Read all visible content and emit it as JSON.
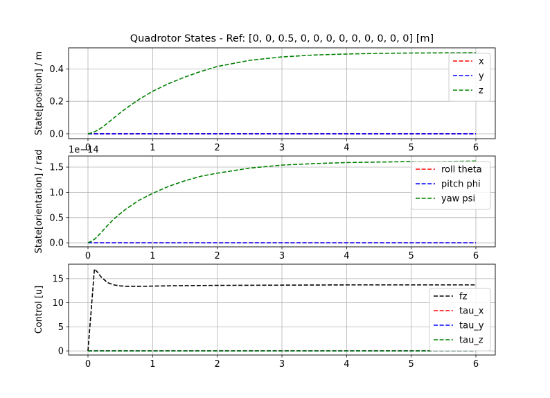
{
  "title": "Quadrotor States - Ref: [0, 0, 0.5, 0, 0, 0, 0, 0, 0, 0, 0, 0] [m]",
  "colors": {
    "x": "#ff0000",
    "y": "#0000ff",
    "z": "#008000",
    "fz": "#000000",
    "grid": "#b0b0b0"
  },
  "chart_data": [
    {
      "type": "line",
      "title": "Quadrotor States - Ref: [0, 0, 0.5, 0, 0, 0, 0, 0, 0, 0, 0, 0] [m]",
      "xlabel": "",
      "ylabel": "State[position] / m",
      "offset_text": "",
      "xlim": [
        -0.3,
        6.3
      ],
      "ylim": [
        -0.03,
        0.53
      ],
      "xticks": [
        0,
        1,
        2,
        3,
        4,
        5,
        6
      ],
      "xticklabels": [
        "0",
        "1",
        "2",
        "3",
        "4",
        "5",
        "6"
      ],
      "yticks": [
        0,
        0.2,
        0.4
      ],
      "yticklabels": [
        "0.0",
        "0.2",
        "0.4"
      ],
      "grid": true,
      "legend_position": "right",
      "series": [
        {
          "name": "x",
          "color": "#ff0000",
          "style": "dashed",
          "x": [
            0,
            6
          ],
          "y": [
            0,
            0
          ]
        },
        {
          "name": "y",
          "color": "#0000ff",
          "style": "dashed",
          "x": [
            0,
            6
          ],
          "y": [
            0,
            0
          ]
        },
        {
          "name": "z",
          "color": "#008000",
          "style": "dashed",
          "x": [
            0,
            0.05,
            0.1,
            0.15,
            0.2,
            0.3,
            0.4,
            0.5,
            0.6,
            0.8,
            1.0,
            1.25,
            1.5,
            1.75,
            2.0,
            2.5,
            3.0,
            3.5,
            4.0,
            4.5,
            5.0,
            5.5,
            6.0
          ],
          "y": [
            0,
            0.005,
            0.012,
            0.022,
            0.035,
            0.065,
            0.098,
            0.13,
            0.16,
            0.215,
            0.262,
            0.31,
            0.35,
            0.385,
            0.415,
            0.453,
            0.474,
            0.486,
            0.492,
            0.496,
            0.498,
            0.499,
            0.5
          ]
        }
      ]
    },
    {
      "type": "line",
      "title": "",
      "xlabel": "",
      "ylabel": "State[orientation] / rad",
      "offset_text": "1e−14",
      "xlim": [
        -0.3,
        6.3
      ],
      "ylim": [
        -0.08,
        1.72
      ],
      "xticks": [
        0,
        1,
        2,
        3,
        4,
        5,
        6
      ],
      "xticklabels": [
        "0",
        "1",
        "2",
        "3",
        "4",
        "5",
        "6"
      ],
      "yticks": [
        0,
        0.5,
        1.0,
        1.5
      ],
      "yticklabels": [
        "0.0",
        "0.5",
        "1.0",
        "1.5"
      ],
      "grid": true,
      "legend_position": "right",
      "series": [
        {
          "name": "roll theta",
          "color": "#ff0000",
          "style": "dashed",
          "x": [
            0,
            6
          ],
          "y": [
            0,
            0
          ]
        },
        {
          "name": "pitch phi",
          "color": "#0000ff",
          "style": "dashed",
          "x": [
            0,
            6
          ],
          "y": [
            0,
            0
          ]
        },
        {
          "name": "yaw psi",
          "color": "#008000",
          "style": "dashed",
          "x": [
            0,
            0.05,
            0.1,
            0.15,
            0.2,
            0.3,
            0.4,
            0.5,
            0.6,
            0.8,
            1.0,
            1.25,
            1.5,
            1.75,
            2.0,
            2.5,
            3.0,
            3.5,
            4.0,
            4.5,
            5.0,
            5.5,
            6.0
          ],
          "y": [
            0,
            0.03,
            0.07,
            0.13,
            0.2,
            0.34,
            0.47,
            0.58,
            0.68,
            0.85,
            0.98,
            1.12,
            1.23,
            1.32,
            1.38,
            1.48,
            1.54,
            1.57,
            1.59,
            1.6,
            1.61,
            1.61,
            1.62
          ]
        }
      ]
    },
    {
      "type": "line",
      "title": "",
      "xlabel": "",
      "ylabel": "Control [u]",
      "offset_text": "",
      "xlim": [
        -0.3,
        6.3
      ],
      "ylim": [
        -0.85,
        18.0
      ],
      "xticks": [
        0,
        1,
        2,
        3,
        4,
        5,
        6
      ],
      "xticklabels": [
        "0",
        "1",
        "2",
        "3",
        "4",
        "5",
        "6"
      ],
      "yticks": [
        0,
        5,
        10,
        15
      ],
      "yticklabels": [
        "0",
        "5",
        "10",
        "15"
      ],
      "grid": true,
      "legend_position": "lower right",
      "series": [
        {
          "name": "fz",
          "color": "#000000",
          "style": "dashed",
          "x": [
            0,
            0.1,
            0.15,
            0.2,
            0.3,
            0.4,
            0.5,
            0.6,
            0.7,
            0.8,
            1.0,
            1.5,
            2.0,
            3.0,
            4.0,
            5.0,
            6.0
          ],
          "y": [
            0,
            17.0,
            16.3,
            15.4,
            14.2,
            13.7,
            13.5,
            13.4,
            13.4,
            13.4,
            13.45,
            13.55,
            13.6,
            13.65,
            13.7,
            13.7,
            13.7
          ]
        },
        {
          "name": "tau_x",
          "color": "#ff0000",
          "style": "dashed",
          "x": [
            0,
            6
          ],
          "y": [
            0,
            0
          ]
        },
        {
          "name": "tau_y",
          "color": "#0000ff",
          "style": "dashed",
          "x": [
            0,
            6
          ],
          "y": [
            0,
            0
          ]
        },
        {
          "name": "tau_z",
          "color": "#008000",
          "style": "dashed",
          "x": [
            0,
            6
          ],
          "y": [
            0,
            0
          ]
        }
      ]
    }
  ]
}
